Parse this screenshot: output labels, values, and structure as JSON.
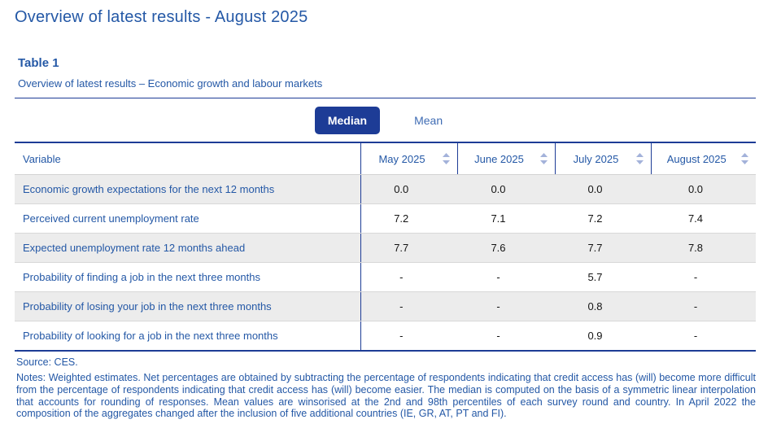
{
  "page": {
    "title": "Overview of latest results - August 2025",
    "table_label": "Table 1",
    "table_subtitle": "Overview of latest results – Economic growth and labour markets"
  },
  "toggle": {
    "options": [
      {
        "label": "Median",
        "active": true
      },
      {
        "label": "Mean",
        "active": false
      }
    ]
  },
  "table": {
    "columns": [
      "Variable",
      "May 2025",
      "June 2025",
      "July 2025",
      "August 2025"
    ],
    "rows": [
      {
        "variable": "Economic growth expectations for the next 12 months",
        "values": [
          "0.0",
          "0.0",
          "0.0",
          "0.0"
        ]
      },
      {
        "variable": "Perceived current unemployment rate",
        "values": [
          "7.2",
          "7.1",
          "7.2",
          "7.4"
        ]
      },
      {
        "variable": "Expected unemployment rate 12 months ahead",
        "values": [
          "7.7",
          "7.6",
          "7.7",
          "7.8"
        ]
      },
      {
        "variable": "Probability of finding a job in the next three months",
        "values": [
          "-",
          "-",
          "5.7",
          "-"
        ]
      },
      {
        "variable": "Probability of losing your job in the next three months",
        "values": [
          "-",
          "-",
          "0.8",
          "-"
        ]
      },
      {
        "variable": "Probability of looking for a job in the next three months",
        "values": [
          "-",
          "-",
          "0.9",
          "-"
        ]
      }
    ]
  },
  "footer": {
    "source": "Source: CES.",
    "notes": "Notes: Weighted estimates. Net percentages are obtained by subtracting the percentage of respondents indicating that credit access has (will) become more difficult from the percentage of respondents indicating that credit access has (will) become easier. The median is computed on the basis of a symmetric linear interpolation that accounts for rounding of responses. Mean values are winsorised at the 2nd and 98th percentiles of each survey round and country. In April 2022 the composition of the aggregates changed after the inclusion of five additional countries (IE, GR, AT, PT and FI)."
  },
  "colors": {
    "blue": "#2458a6",
    "navy": "#1d3c96",
    "link_blue": "#3f6cb4",
    "row_gray": "#ececec",
    "sort_icon": "#a3b2da"
  },
  "icons": {
    "sort": "sort-icon"
  }
}
